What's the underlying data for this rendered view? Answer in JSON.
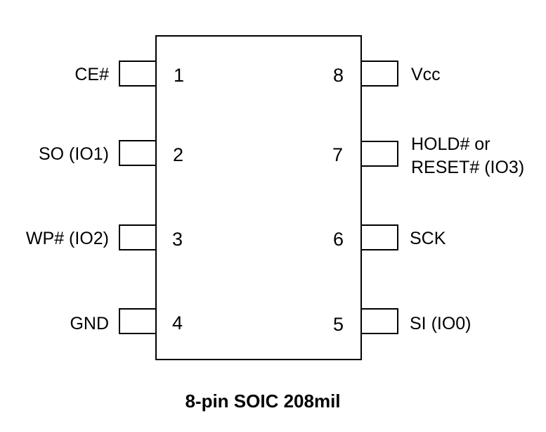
{
  "package": {
    "caption": "8-pin SOIC 208mil"
  },
  "pins": [
    {
      "number": "1",
      "label": "CE#"
    },
    {
      "number": "2",
      "label": "SO (IO1)"
    },
    {
      "number": "3",
      "label": "WP# (IO2)"
    },
    {
      "number": "4",
      "label": "GND"
    },
    {
      "number": "5",
      "label": "SI (IO0)"
    },
    {
      "number": "6",
      "label": "SCK"
    },
    {
      "number": "7",
      "label_line1": "HOLD# or",
      "label_line2": "RESET# (IO3)"
    },
    {
      "number": "8",
      "label": "Vcc"
    }
  ]
}
